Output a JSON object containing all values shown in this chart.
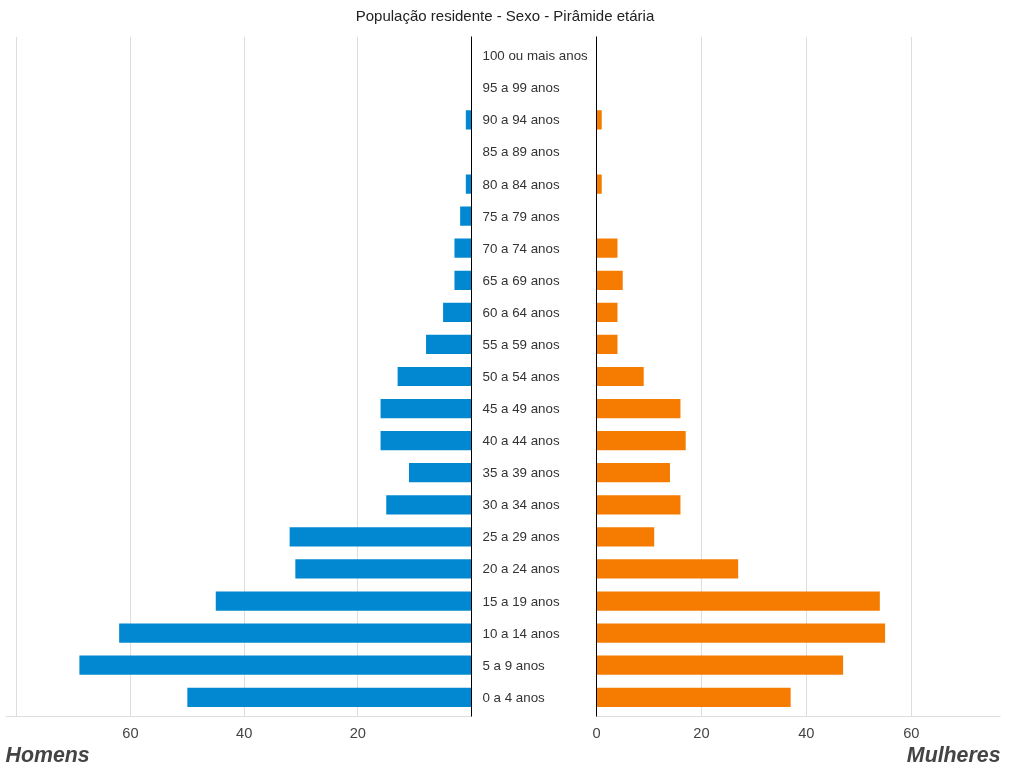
{
  "chart_data": [
    {
      "type": "bar",
      "orientation": "horizontal",
      "title": "População residente - Sexo - Pirâmide etária",
      "xlabel": "Homens",
      "categories": [
        "100 ou mais anos",
        "95 a 99 anos",
        "90 a 94 anos",
        "85 a 89 anos",
        "80 a 84 anos",
        "75 a 79 anos",
        "70 a 74 anos",
        "65 a 69 anos",
        "60 a 64 anos",
        "55 a 59 anos",
        "50 a 54 anos",
        "45 a 49 anos",
        "40 a 44 anos",
        "35 a 39 anos",
        "30 a 34 anos",
        "25 a 29 anos",
        "20 a 24 anos",
        "15 a 19 anos",
        "10 a 14 anos",
        "5 a 9 anos",
        "0 a 4 anos"
      ],
      "values": [
        0,
        0,
        1,
        0,
        1,
        2,
        3,
        3,
        5,
        8,
        13,
        16,
        16,
        11,
        15,
        32,
        31,
        45,
        62,
        69,
        50
      ],
      "color": "#0288d1",
      "xlim": [
        82,
        0
      ],
      "xticks": [
        {
          "value": 80,
          "label": null
        },
        60,
        40,
        20
      ],
      "grid": "x"
    },
    {
      "type": "bar",
      "orientation": "horizontal",
      "xlabel": "Mulheres",
      "tick_labels": "x",
      "categories": [
        null,
        null,
        null,
        null,
        null,
        null,
        null,
        null,
        null,
        null,
        null,
        null,
        null,
        null,
        null,
        null,
        null,
        null,
        null,
        null,
        null
      ],
      "values": [
        0,
        0,
        1,
        0,
        1,
        0,
        4,
        5,
        4,
        4,
        9,
        16,
        17,
        14,
        16,
        11,
        27,
        54,
        55,
        47,
        37
      ],
      "color": "#f57c00",
      "xlim": [
        0,
        77
      ],
      "xticks": [
        0,
        20,
        40,
        60
      ],
      "grid": "x"
    }
  ]
}
